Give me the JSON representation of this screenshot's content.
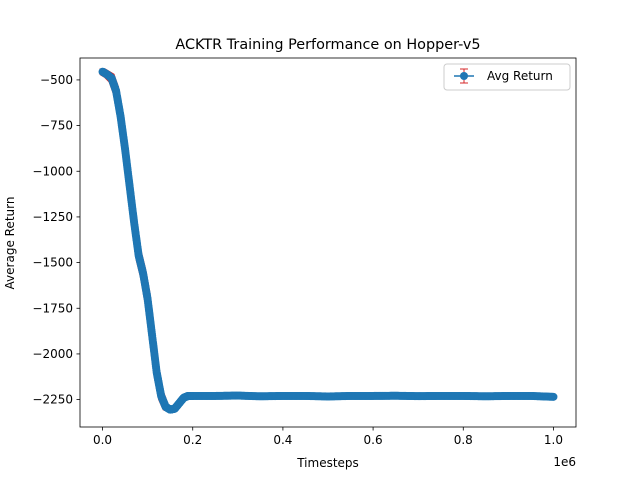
{
  "chart_data": {
    "type": "line",
    "title": "ACKTR Training Performance on Hopper-v5",
    "xlabel": "Timesteps",
    "ylabel": "Average Return",
    "x_offset_label": "1e6",
    "xlim": [
      -0.05,
      1.05
    ],
    "ylim": [
      -2400,
      -380
    ],
    "x_ticks": [
      0.0,
      0.2,
      0.4,
      0.6,
      0.8,
      1.0
    ],
    "x_tick_labels": [
      "0.0",
      "0.2",
      "0.4",
      "0.6",
      "0.8",
      "1.0"
    ],
    "y_ticks": [
      -500,
      -750,
      -1000,
      -1250,
      -1500,
      -1750,
      -2000,
      -2250
    ],
    "y_tick_labels": [
      "−500",
      "−750",
      "−1000",
      "−1250",
      "−1500",
      "−1750",
      "−2000",
      "−2250"
    ],
    "grid": false,
    "legend_position": "top-right",
    "series": [
      {
        "name": "Avg Return",
        "color": "#1f77b4",
        "error_color": "#d62728",
        "x": [
          0.0,
          0.01,
          0.02,
          0.03,
          0.04,
          0.05,
          0.06,
          0.07,
          0.08,
          0.09,
          0.1,
          0.11,
          0.12,
          0.13,
          0.14,
          0.15,
          0.16,
          0.17,
          0.18,
          0.19,
          0.2,
          0.25,
          0.3,
          0.35,
          0.4,
          0.45,
          0.5,
          0.55,
          0.6,
          0.65,
          0.7,
          0.75,
          0.8,
          0.85,
          0.9,
          0.95,
          1.0
        ],
        "y": [
          -455,
          -470,
          -490,
          -560,
          -700,
          -880,
          -1080,
          -1280,
          -1460,
          -1560,
          -1700,
          -1900,
          -2100,
          -2230,
          -2290,
          -2305,
          -2300,
          -2270,
          -2240,
          -2230,
          -2230,
          -2230,
          -2228,
          -2232,
          -2230,
          -2230,
          -2233,
          -2230,
          -2230,
          -2229,
          -2231,
          -2230,
          -2230,
          -2232,
          -2230,
          -2230,
          -2235
        ],
        "yerr": [
          15,
          15,
          20,
          20,
          20,
          25,
          25,
          25,
          25,
          25,
          30,
          30,
          25,
          20,
          15,
          10,
          8,
          8,
          8,
          8,
          6,
          6,
          6,
          6,
          6,
          6,
          6,
          6,
          6,
          6,
          6,
          6,
          6,
          6,
          6,
          6,
          6
        ]
      }
    ]
  }
}
